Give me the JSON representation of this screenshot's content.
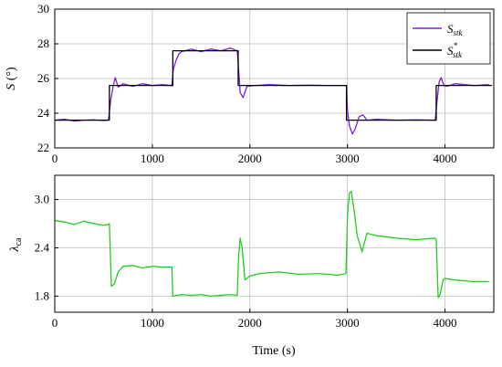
{
  "chart_data": [
    {
      "type": "line",
      "ylabel_main": "S",
      "ylabel_unit": "(°)",
      "xlim": [
        0,
        4500
      ],
      "ylim": [
        22,
        30
      ],
      "xticks": [
        0,
        1000,
        2000,
        3000,
        4000
      ],
      "yticks": [
        22,
        24,
        26,
        28,
        30
      ],
      "grid": true,
      "legend_position": "top-right",
      "series": [
        {
          "name": "S_stk",
          "label_main": "S",
          "label_sub": "stk",
          "label_sup": "",
          "color": "#7B1FD6",
          "x": [
            0,
            100,
            200,
            300,
            400,
            500,
            550,
            575,
            600,
            620,
            650,
            700,
            800,
            900,
            1000,
            1100,
            1200,
            1215,
            1240,
            1270,
            1300,
            1400,
            1500,
            1600,
            1700,
            1800,
            1870,
            1885,
            1900,
            1930,
            1970,
            2050,
            2200,
            2400,
            2600,
            2800,
            2990,
            3000,
            3020,
            3050,
            3080,
            3120,
            3160,
            3200,
            3300,
            3500,
            3700,
            3900,
            3920,
            3940,
            3960,
            3990,
            4020,
            4100,
            4300,
            4450
          ],
          "values": [
            23.6,
            23.65,
            23.55,
            23.6,
            23.62,
            23.58,
            23.6,
            24.8,
            25.6,
            26.05,
            25.5,
            25.7,
            25.55,
            25.7,
            25.6,
            25.65,
            25.6,
            26.5,
            27.0,
            27.4,
            27.55,
            27.7,
            27.55,
            27.7,
            27.6,
            27.75,
            27.6,
            26.5,
            25.2,
            24.9,
            25.55,
            25.6,
            25.65,
            25.6,
            25.62,
            25.6,
            25.6,
            24.2,
            23.3,
            22.8,
            23.1,
            23.8,
            23.9,
            23.6,
            23.65,
            23.6,
            23.62,
            23.6,
            24.8,
            25.8,
            26.05,
            25.6,
            25.55,
            25.7,
            25.6,
            25.65
          ]
        },
        {
          "name": "S*_stk",
          "label_main": "S",
          "label_sub": "stk",
          "label_sup": "*",
          "color": "#000000",
          "x": [
            0,
            560,
            560,
            1210,
            1210,
            1880,
            1880,
            2990,
            2990,
            3910,
            3910,
            4480
          ],
          "values": [
            23.6,
            23.6,
            25.6,
            25.6,
            27.6,
            27.6,
            25.6,
            25.6,
            23.6,
            23.6,
            25.6,
            25.6
          ]
        }
      ]
    },
    {
      "type": "line",
      "ylabel_main": "λ",
      "ylabel_sub": "ca",
      "xlabel": "Time (s)",
      "xlim": [
        0,
        4500
      ],
      "ylim": [
        1.6,
        3.3
      ],
      "xticks": [
        0,
        1000,
        2000,
        3000,
        4000
      ],
      "yticks": [
        1.8,
        2.4,
        3.0
      ],
      "grid": true,
      "series": [
        {
          "name": "lambda_ca",
          "color": "#22CC22",
          "x": [
            0,
            100,
            200,
            300,
            400,
            500,
            550,
            560,
            580,
            610,
            650,
            700,
            800,
            900,
            1000,
            1100,
            1200,
            1210,
            1300,
            1400,
            1500,
            1600,
            1700,
            1800,
            1870,
            1885,
            1900,
            1920,
            1950,
            2000,
            2100,
            2300,
            2500,
            2700,
            2900,
            2985,
            3000,
            3020,
            3040,
            3070,
            3100,
            3150,
            3200,
            3300,
            3500,
            3700,
            3900,
            3910,
            3930,
            3950,
            3980,
            4000,
            4100,
            4300,
            4450
          ],
          "values": [
            2.74,
            2.72,
            2.69,
            2.73,
            2.7,
            2.68,
            2.69,
            2.7,
            1.92,
            1.95,
            2.1,
            2.17,
            2.18,
            2.15,
            2.17,
            2.16,
            2.16,
            1.8,
            1.82,
            1.81,
            1.82,
            1.8,
            1.81,
            1.82,
            1.81,
            2.3,
            2.52,
            2.4,
            2.0,
            2.05,
            2.08,
            2.1,
            2.07,
            2.08,
            2.06,
            2.08,
            2.8,
            3.08,
            3.1,
            2.85,
            2.55,
            2.35,
            2.58,
            2.55,
            2.52,
            2.5,
            2.52,
            2.5,
            1.78,
            1.82,
            2.0,
            2.02,
            2.0,
            1.98,
            1.98
          ]
        }
      ]
    }
  ]
}
